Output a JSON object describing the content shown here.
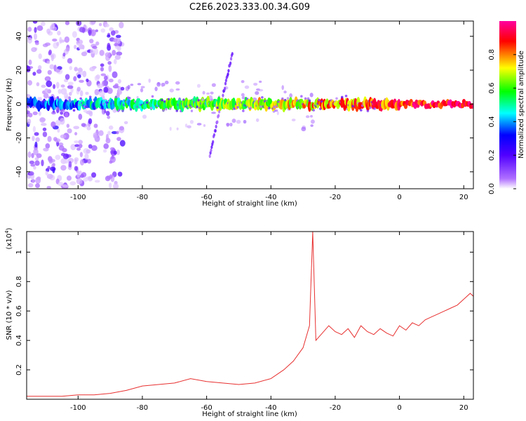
{
  "figure_title": "C2E6.2023.333.00.34.G09",
  "chart_data": [
    {
      "type": "heatmap",
      "title": "C2E6.2023.333.00.34.G09",
      "xlabel": "Height of straight line (km)",
      "ylabel": "Frequency (Hz)",
      "xlim": [
        -116,
        23
      ],
      "ylim": [
        -50,
        49
      ],
      "x_ticks": [
        -100,
        -80,
        -60,
        -40,
        -20,
        0,
        20
      ],
      "y_ticks": [
        -40,
        -20,
        0,
        20,
        40
      ],
      "colorbar": {
        "label": "Normalized spectral amplitude",
        "range": [
          0,
          1
        ],
        "ticks": [
          0.0,
          0.2,
          0.4,
          0.6,
          0.8
        ],
        "colormap": [
          "#ffffff",
          "#b070ff",
          "#5000ff",
          "#0000ff",
          "#00ffff",
          "#00ff00",
          "#ffff00",
          "#ff0000",
          "#ff00a0"
        ]
      },
      "features": [
        {
          "name": "carrier line",
          "x_range": [
            -116,
            23
          ],
          "frequency_hz": 0,
          "amplitude_start": 0.35,
          "amplitude_end": 0.95
        },
        {
          "name": "diagonal streak",
          "x_from": -59,
          "x_to": -52,
          "freq_from": -30,
          "freq_to": 30
        },
        {
          "name": "scattered noise",
          "x_range": [
            -116,
            -86
          ],
          "freq_range": [
            -50,
            49
          ]
        }
      ]
    },
    {
      "type": "line",
      "xlabel": "Height of straight line (km)",
      "ylabel": "SNR (10 * v/v)",
      "y_scale_label": "(x10",
      "y_scale_exponent": "4",
      "y_scale_close": ")",
      "xlim": [
        -116,
        23
      ],
      "ylim": [
        0,
        1.14
      ],
      "x_ticks": [
        -100,
        -80,
        -60,
        -40,
        -20,
        0,
        20
      ],
      "y_ticks": [
        0.2,
        0.4,
        0.6,
        0.8,
        1
      ],
      "line_color": "#e83030",
      "series": [
        {
          "x": [
            -116,
            -110,
            -105,
            -100,
            -95,
            -90,
            -85,
            -80,
            -75,
            -70,
            -65,
            -60,
            -55,
            -50,
            -45,
            -40,
            -36,
            -33,
            -30,
            -28,
            -27,
            -26,
            -24,
            -22,
            -20,
            -18,
            -16,
            -14,
            -12,
            -10,
            -8,
            -6,
            -4,
            -2,
            0,
            2,
            4,
            6,
            8,
            10,
            12,
            14,
            16,
            18,
            20,
            22,
            23
          ],
          "values": [
            0.02,
            0.02,
            0.02,
            0.03,
            0.03,
            0.04,
            0.06,
            0.09,
            0.1,
            0.11,
            0.14,
            0.12,
            0.11,
            0.1,
            0.11,
            0.14,
            0.2,
            0.26,
            0.35,
            0.5,
            1.14,
            0.4,
            0.45,
            0.5,
            0.46,
            0.44,
            0.48,
            0.42,
            0.5,
            0.46,
            0.44,
            0.48,
            0.45,
            0.43,
            0.5,
            0.47,
            0.52,
            0.5,
            0.54,
            0.56,
            0.58,
            0.6,
            0.62,
            0.64,
            0.68,
            0.72,
            0.7
          ]
        }
      ]
    }
  ]
}
